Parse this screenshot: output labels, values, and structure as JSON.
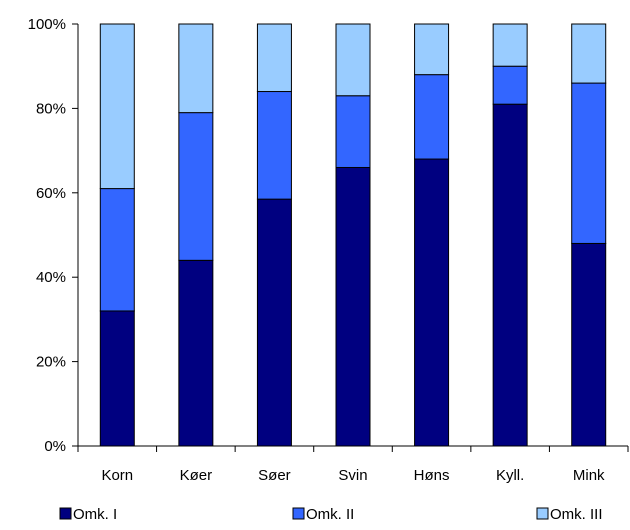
{
  "chart_data": {
    "type": "bar",
    "stacked": true,
    "percent_stacked": true,
    "categories": [
      "Korn",
      "Køer",
      "Søer",
      "Svin",
      "Høns",
      "Kyll.",
      "Mink"
    ],
    "series": [
      {
        "name": "Omk. I",
        "color": "#000080",
        "values": [
          32,
          44,
          58.5,
          66,
          68,
          81,
          48
        ]
      },
      {
        "name": "Omk. II",
        "color": "#3366FF",
        "values": [
          29,
          35,
          25.5,
          17,
          20,
          9,
          38
        ]
      },
      {
        "name": "Omk. III",
        "color": "#99CCFF",
        "values": [
          39,
          21,
          16,
          17,
          12,
          10,
          14
        ]
      }
    ],
    "ylim": [
      0,
      100
    ],
    "yticks": [
      "0%",
      "20%",
      "40%",
      "60%",
      "80%",
      "100%"
    ],
    "grid": false,
    "legend_position": "bottom"
  }
}
